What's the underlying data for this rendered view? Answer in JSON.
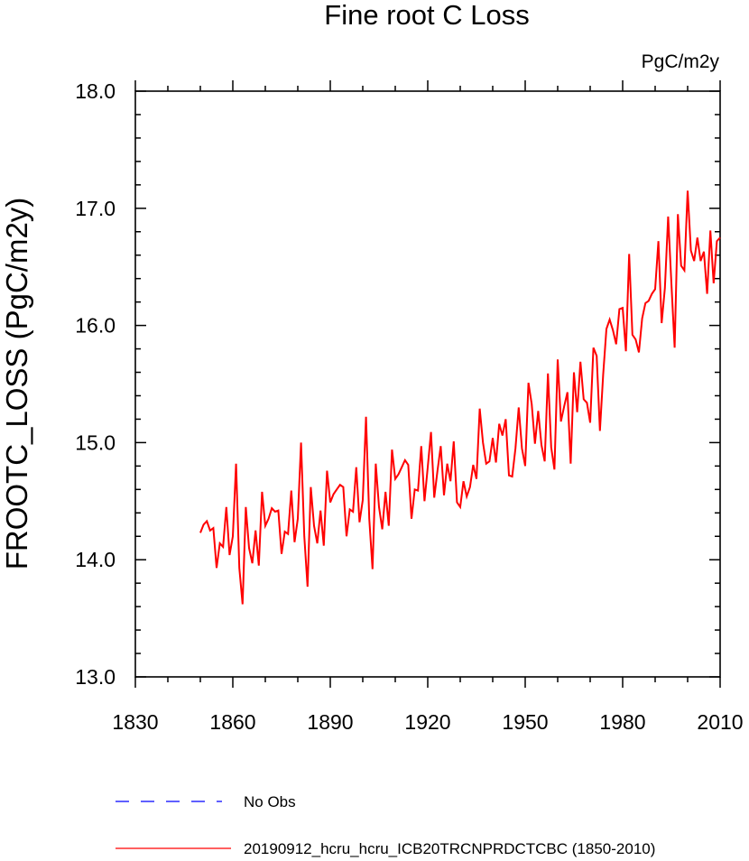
{
  "chart_data": {
    "type": "line",
    "title": "Fine root C Loss",
    "units": "PgC/m2y",
    "xlabel": "",
    "ylabel": "FROOTC_LOSS  (PgC/m2y)",
    "xlim": [
      1830,
      2010
    ],
    "ylim": [
      13.0,
      18.0
    ],
    "x_ticks": [
      1830,
      1860,
      1890,
      1920,
      1950,
      1980,
      2010
    ],
    "x_tick_labels": [
      "1830",
      "1860",
      "1890",
      "1920",
      "1950",
      "1980",
      "2010"
    ],
    "y_ticks": [
      13.0,
      14.0,
      15.0,
      16.0,
      17.0,
      18.0
    ],
    "y_tick_labels": [
      "13.0",
      "14.0",
      "15.0",
      "16.0",
      "17.0",
      "18.0"
    ],
    "legend": [
      {
        "label": "No Obs",
        "color": "#0000ff",
        "style": "dashed"
      },
      {
        "label": "20190912_hcru_hcru_ICB20TRCNPRDCTCBC (1850-2010)",
        "color": "#ff0000",
        "style": "solid"
      }
    ],
    "series": [
      {
        "name": "20190912_hcru_hcru_ICB20TRCNPRDCTCBC (1850-2010)",
        "color": "#ff0000",
        "x_start": 1850,
        "x_step": 1,
        "values": [
          14.23,
          14.3,
          14.33,
          14.25,
          14.27,
          13.93,
          14.14,
          14.11,
          14.45,
          14.04,
          14.2,
          14.82,
          13.93,
          13.62,
          14.45,
          14.1,
          13.97,
          14.25,
          13.95,
          14.58,
          14.29,
          14.35,
          14.44,
          14.41,
          14.42,
          14.05,
          14.24,
          14.22,
          14.59,
          14.15,
          14.35,
          15.0,
          14.2,
          13.77,
          14.62,
          14.29,
          14.14,
          14.42,
          14.12,
          14.76,
          14.49,
          14.56,
          14.6,
          14.64,
          14.62,
          14.2,
          14.43,
          14.41,
          14.79,
          14.32,
          14.51,
          15.22,
          14.35,
          13.92,
          14.82,
          14.45,
          14.26,
          14.58,
          14.29,
          14.94,
          14.69,
          14.73,
          14.79,
          14.85,
          14.81,
          14.35,
          14.6,
          14.59,
          14.97,
          14.5,
          14.79,
          15.09,
          14.53,
          14.76,
          14.97,
          14.55,
          14.82,
          14.67,
          15.01,
          14.49,
          14.45,
          14.67,
          14.54,
          14.62,
          14.81,
          14.69,
          15.29,
          15.0,
          14.82,
          14.84,
          15.04,
          14.83,
          15.16,
          15.06,
          15.2,
          14.72,
          14.71,
          14.95,
          15.3,
          14.95,
          14.8,
          15.51,
          15.33,
          14.99,
          15.27,
          14.98,
          14.84,
          15.59,
          14.96,
          14.77,
          15.71,
          15.18,
          15.31,
          15.43,
          14.82,
          15.6,
          15.26,
          15.69,
          15.37,
          15.34,
          15.17,
          15.81,
          15.74,
          15.1,
          15.58,
          15.97,
          16.05,
          15.96,
          15.84,
          16.14,
          16.15,
          15.78,
          16.61,
          15.92,
          15.88,
          15.77,
          16.06,
          16.19,
          16.21,
          16.27,
          16.31,
          16.72,
          16.02,
          16.32,
          16.93,
          16.36,
          15.81,
          16.95,
          16.51,
          16.47,
          17.15,
          16.64,
          16.55,
          16.75,
          16.55,
          16.63,
          16.27,
          16.81,
          16.36,
          16.72,
          16.75
        ]
      }
    ]
  }
}
